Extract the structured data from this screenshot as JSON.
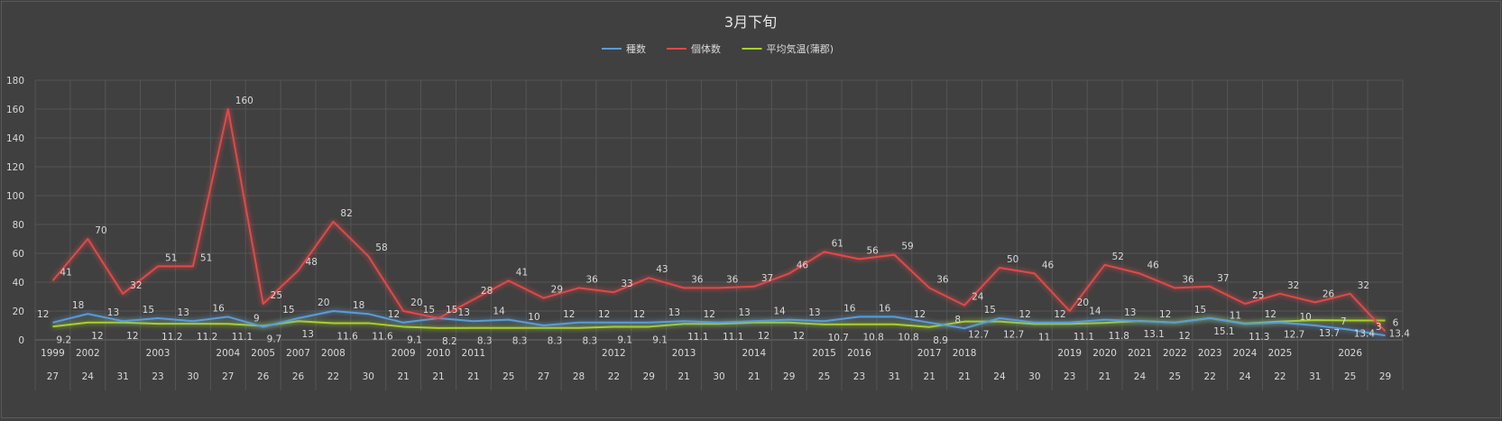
{
  "chart_data": {
    "type": "line",
    "title": "3月下旬",
    "xlabel": "",
    "ylabel": "",
    "ylim": [
      0,
      180
    ],
    "yticks": [
      0,
      20,
      40,
      60,
      80,
      100,
      120,
      140,
      160,
      180
    ],
    "grid": true,
    "legend_position": "top-center",
    "x_years": [
      "1999",
      "2002",
      "",
      "2003",
      "",
      "2004",
      "2005",
      "2007",
      "2008",
      "",
      "2009",
      "2010",
      "2011",
      "",
      "",
      "",
      "2012",
      "",
      "2013",
      "",
      "2014",
      "",
      "2015",
      "2016",
      "",
      "2017",
      "2018",
      "",
      "",
      "2019",
      "2020",
      "2021",
      "2022",
      "2023",
      "2024",
      "2025",
      "",
      "2026",
      ""
    ],
    "x_days": [
      "27",
      "24",
      "31",
      "23",
      "30",
      "27",
      "26",
      "26",
      "22",
      "30",
      "21",
      "21",
      "21",
      "25",
      "27",
      "28",
      "22",
      "29",
      "21",
      "30",
      "21",
      "29",
      "25",
      "23",
      "31",
      "21",
      "21",
      "24",
      "30",
      "23",
      "21",
      "24",
      "25",
      "22",
      "24",
      "22",
      "31",
      "25",
      "29"
    ],
    "series": [
      {
        "name": "種数",
        "color": "#5b9bd5",
        "values": [
          12,
          18,
          13,
          15,
          13,
          16,
          9,
          15,
          20,
          18,
          12,
          15,
          13,
          14,
          10,
          12,
          12,
          12,
          13,
          12,
          13,
          14,
          13,
          16,
          16,
          12,
          8,
          15,
          12,
          12,
          14,
          13,
          12,
          15,
          11,
          12,
          10,
          7,
          3
        ]
      },
      {
        "name": "個体数",
        "color": "#e04848",
        "values": [
          41,
          70,
          32,
          51,
          51,
          160,
          25,
          48,
          82,
          58,
          20,
          15,
          28,
          41,
          29,
          36,
          33,
          43,
          36,
          36,
          37,
          46,
          61,
          56,
          59,
          36,
          24,
          50,
          46,
          20,
          52,
          46,
          36,
          37,
          25,
          32,
          26,
          32,
          6
        ]
      },
      {
        "name": "平均気温(蒲郡)",
        "color": "#a9d12c",
        "values": [
          9.2,
          12,
          12,
          11.2,
          11.2,
          11.1,
          9.7,
          13,
          11.6,
          11.6,
          9.1,
          8.2,
          8.3,
          8.3,
          8.3,
          8.3,
          9.1,
          9.1,
          11.1,
          11.1,
          12,
          12,
          10.7,
          10.8,
          10.8,
          8.9,
          12.7,
          12.7,
          11,
          11.1,
          11.8,
          13.1,
          12,
          15.1,
          11.3,
          12.7,
          13.7,
          13.4,
          13.4
        ]
      }
    ]
  }
}
